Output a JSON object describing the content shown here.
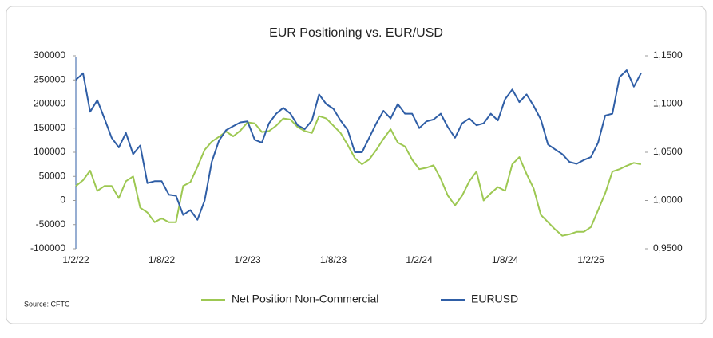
{
  "chart_data": {
    "type": "line",
    "title": "EUR Positioning vs. EUR/USD",
    "source": "Source: CFTC",
    "categories": [
      "1/2/22",
      null,
      null,
      null,
      null,
      null,
      null,
      null,
      null,
      null,
      null,
      null,
      "1/8/22",
      null,
      null,
      null,
      null,
      null,
      null,
      null,
      null,
      null,
      null,
      null,
      "1/2/23",
      null,
      null,
      null,
      null,
      null,
      null,
      null,
      null,
      null,
      null,
      null,
      "1/8/23",
      null,
      null,
      null,
      null,
      null,
      null,
      null,
      null,
      null,
      null,
      null,
      "1/2/24",
      null,
      null,
      null,
      null,
      null,
      null,
      null,
      null,
      null,
      null,
      null,
      "1/8/24",
      null,
      null,
      null,
      null,
      null,
      null,
      null,
      null,
      null,
      null,
      null,
      "1/2/25",
      null,
      null,
      null,
      null,
      null,
      null,
      null
    ],
    "series": [
      {
        "name": "Net Position Non-Commercial",
        "color": "#9dc852",
        "axis": "y",
        "values": [
          30000,
          42000,
          62000,
          20000,
          30000,
          30000,
          5000,
          40000,
          50000,
          -15000,
          -25000,
          -45000,
          -37000,
          -45000,
          -45000,
          30000,
          38000,
          70000,
          105000,
          122000,
          132000,
          143000,
          133000,
          145000,
          162000,
          160000,
          142000,
          144000,
          155000,
          170000,
          168000,
          152000,
          144000,
          140000,
          175000,
          170000,
          155000,
          140000,
          115000,
          88000,
          75000,
          85000,
          105000,
          128000,
          148000,
          120000,
          112000,
          85000,
          65000,
          68000,
          73000,
          45000,
          10000,
          -10000,
          10000,
          40000,
          60000,
          0,
          15000,
          28000,
          20000,
          75000,
          90000,
          55000,
          25000,
          -30000,
          -45000,
          -60000,
          -73000,
          -70000,
          -65000,
          -65000,
          -55000,
          -20000,
          15000,
          60000,
          65000,
          72000,
          78000,
          75000
        ]
      },
      {
        "name": "EURUSD",
        "color": "#2f5ea6",
        "axis": "y2",
        "values": [
          1.125,
          1.132,
          1.092,
          1.104,
          1.085,
          1.065,
          1.055,
          1.07,
          1.048,
          1.057,
          1.018,
          1.02,
          1.02,
          1.006,
          1.005,
          0.985,
          0.99,
          0.98,
          1.0,
          1.04,
          1.062,
          1.073,
          1.077,
          1.081,
          1.082,
          1.063,
          1.06,
          1.08,
          1.09,
          1.096,
          1.09,
          1.078,
          1.074,
          1.083,
          1.11,
          1.1,
          1.095,
          1.083,
          1.073,
          1.05,
          1.05,
          1.065,
          1.08,
          1.093,
          1.085,
          1.1,
          1.09,
          1.09,
          1.075,
          1.082,
          1.084,
          1.09,
          1.076,
          1.065,
          1.08,
          1.085,
          1.078,
          1.08,
          1.09,
          1.083,
          1.105,
          1.115,
          1.102,
          1.11,
          1.098,
          1.084,
          1.058,
          1.053,
          1.048,
          1.04,
          1.038,
          1.042,
          1.045,
          1.06,
          1.088,
          1.09,
          1.128,
          1.135,
          1.118,
          1.132
        ]
      }
    ],
    "ylim": [
      -100000,
      300000
    ],
    "yticks": [
      -100000,
      -50000,
      0,
      50000,
      100000,
      150000,
      200000,
      250000,
      300000
    ],
    "y2lim": [
      0.95,
      1.15
    ],
    "y2ticks": [
      {
        "value": 0.95,
        "label": "0,9500"
      },
      {
        "value": 1.0,
        "label": "1,0000"
      },
      {
        "value": 1.05,
        "label": "1,0500"
      },
      {
        "value": 1.1,
        "label": "1,1000"
      },
      {
        "value": 1.15,
        "label": "1,1500"
      }
    ],
    "legend": "bottom"
  }
}
